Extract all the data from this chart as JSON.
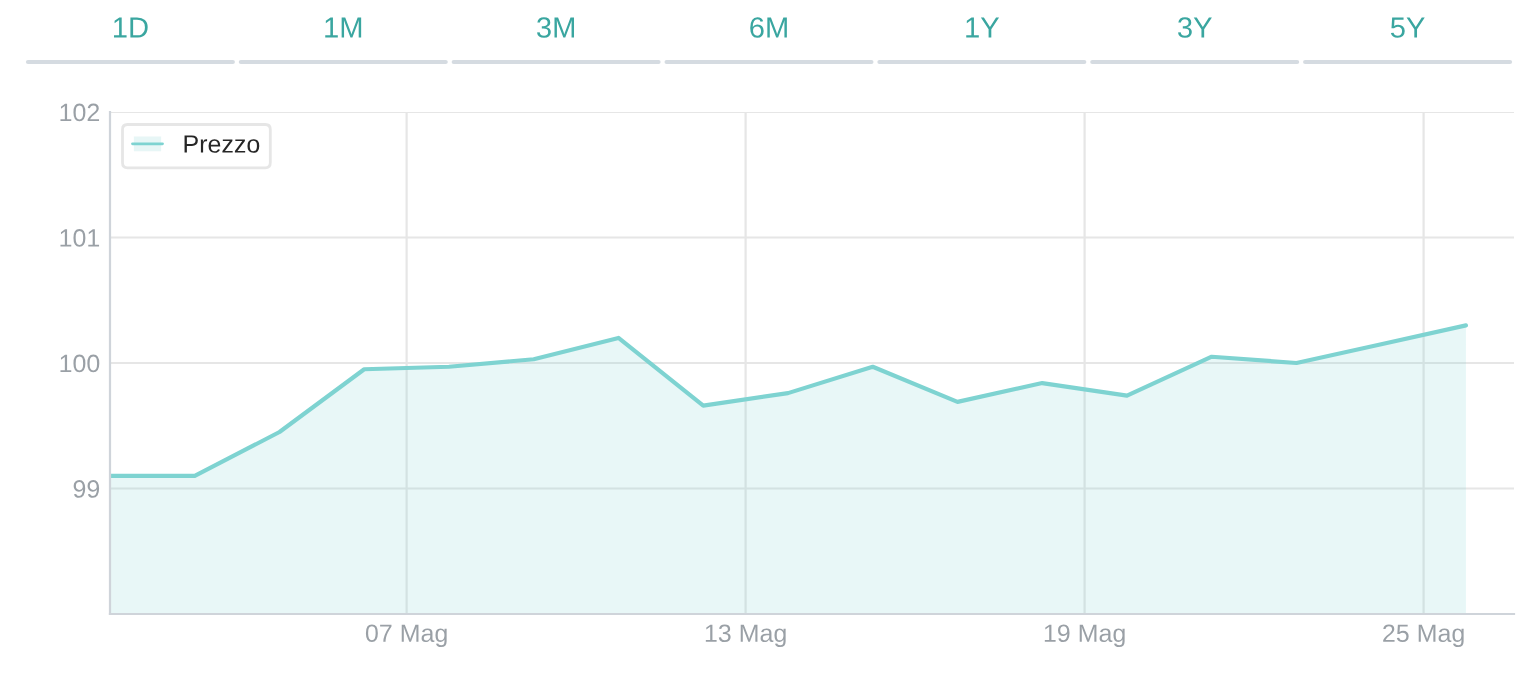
{
  "chart_data": {
    "type": "area",
    "x": [
      1.75,
      3.25,
      4.75,
      6.25,
      7.75,
      9.25,
      10.75,
      12.25,
      13.75,
      15.25,
      16.75,
      18.25,
      19.75,
      21.25,
      22.75,
      24.25,
      25.75
    ],
    "series": [
      {
        "name": "Prezzo",
        "color": "#7ed3d1",
        "values": [
          99.1,
          99.1,
          99.45,
          99.95,
          99.97,
          100.03,
          100.2,
          99.66,
          99.76,
          99.97,
          99.69,
          99.84,
          99.74,
          100.05,
          100.0,
          100.15,
          100.3
        ]
      }
    ],
    "xlim": [
      1.75,
      26.6
    ],
    "xticks": [
      {
        "value": 7,
        "label": "07 Mag"
      },
      {
        "value": 13,
        "label": "13 Mag"
      },
      {
        "value": 19,
        "label": "19 Mag"
      },
      {
        "value": 25,
        "label": "25 Mag"
      }
    ],
    "ylim": [
      98,
      102
    ],
    "yticks": [
      99,
      100,
      101,
      102
    ],
    "grid": true,
    "legend": "top left",
    "annotations": [
      "1D",
      "1M",
      "3M",
      "6M",
      "1Y",
      "3Y",
      "5Y"
    ]
  }
}
